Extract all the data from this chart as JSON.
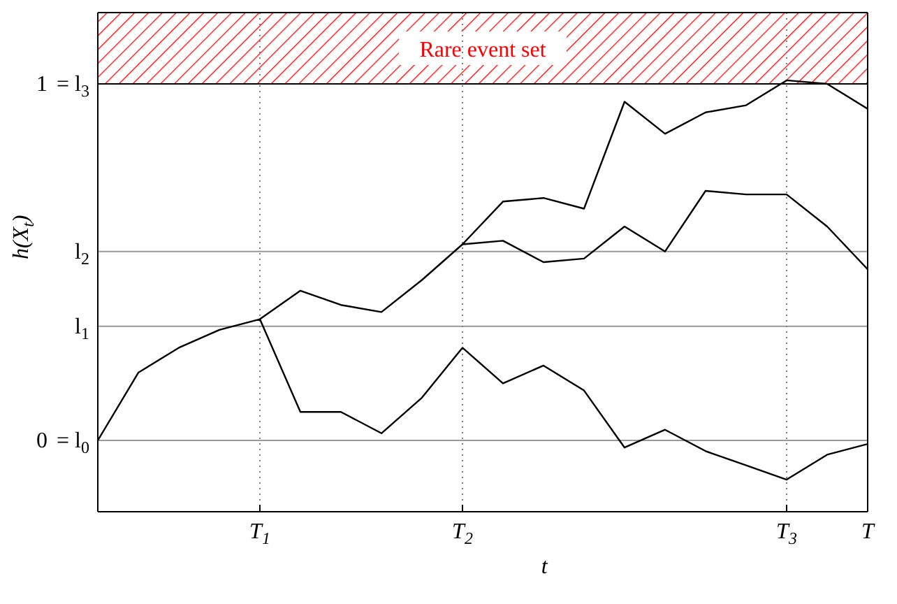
{
  "chart_data": {
    "type": "line",
    "xlabel": "t",
    "ylabel": "h(X$_{t}$)",
    "categories": [
      null,
      null,
      null,
      null,
      "T$_{1}$",
      null,
      null,
      null,
      null,
      "T$_{2}$",
      null,
      null,
      null,
      null,
      null,
      null,
      null,
      "T$_{3}$",
      null,
      "T"
    ],
    "ylim": [
      -0.2,
      1.2
    ],
    "yticks": [
      0,
      1
    ],
    "legend": false,
    "marker": "none",
    "line_style": "solid",
    "series": [
      {
        "color": "#000000",
        "values": [
          0,
          0.19,
          0.26,
          0.31,
          0.34,
          0.08,
          0.08,
          0.02,
          0.12,
          0.26,
          0.16,
          0.21,
          0.14,
          -0.02,
          0.03,
          -0.03,
          -0.07,
          -0.11,
          -0.04,
          -0.01
        ]
      },
      {
        "color": "#000000",
        "values": [
          null,
          null,
          null,
          null,
          0.34,
          0.42,
          0.38,
          0.36,
          0.45,
          0.55,
          0.56,
          0.5,
          0.51,
          0.6,
          0.53,
          0.7,
          0.69,
          0.69,
          0.6,
          0.48
        ]
      },
      {
        "color": "#000000",
        "values": [
          null,
          null,
          null,
          null,
          null,
          null,
          null,
          null,
          null,
          0.55,
          0.67,
          0.68,
          0.65,
          0.95,
          0.86,
          0.92,
          0.94,
          1.01,
          1.0,
          0.93
        ]
      }
    ],
    "ref_lines": [
      {
        "axis": "y",
        "value": 0,
        "label": "= l$_{0}$",
        "line_style": "solid",
        "color": "#999999"
      },
      {
        "axis": "y",
        "value": 1,
        "label": "= l$_{3}$",
        "line_style": "solid",
        "color": "#000000"
      },
      {
        "axis": "y",
        "value": 0.32,
        "label": "l$_{1}$",
        "line_style": "solid",
        "color": "#999999"
      },
      {
        "axis": "y",
        "value": 0.53,
        "label": "l$_{2}$",
        "line_style": "solid",
        "color": "#999999"
      },
      {
        "axis": "x",
        "value": "T$_{1}$",
        "line_style": "dotted",
        "color": "#808080"
      },
      {
        "axis": "x",
        "value": "T$_{2}$",
        "line_style": "dotted",
        "color": "#808080"
      },
      {
        "axis": "x",
        "value": "T$_{3}$",
        "line_style": "dotted",
        "color": "#808080"
      }
    ],
    "bands": [
      {
        "axis": "y",
        "from": 1,
        "to": 1.2,
        "label": "Rare event set",
        "color": "#ff0000"
      }
    ]
  }
}
